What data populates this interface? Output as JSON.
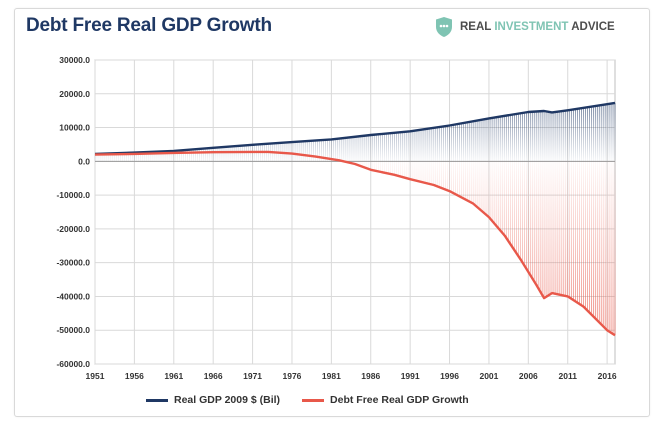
{
  "title": "Debt Free Real GDP Growth",
  "brand": {
    "icon": "shield-icon",
    "word1": "REAL",
    "word2": "INVESTMENT",
    "word3": "ADVICE",
    "accent_color": "#7fc4b3"
  },
  "chart_data": {
    "type": "area",
    "title": "Debt Free Real GDP Growth",
    "x_tick_labels": [
      "1951",
      "1956",
      "1961",
      "1966",
      "1971",
      "1976",
      "1981",
      "1986",
      "1991",
      "1996",
      "2001",
      "2006",
      "2011",
      "2016"
    ],
    "y_tick_labels": [
      "30000.0",
      "20000.0",
      "10000.0",
      "0.0",
      "-10000.0",
      "-20000.0",
      "-30000.0",
      "-40000.0",
      "-50000.0",
      "-60000.0"
    ],
    "ylim": [
      -60000,
      30000
    ],
    "xlim": [
      1951,
      2017
    ],
    "grid": true,
    "legend_position": "bottom",
    "series": [
      {
        "name": "Real GDP 2009 $ (Bil)",
        "color": "#1f3864",
        "points": [
          [
            1951,
            2200
          ],
          [
            1956,
            2600
          ],
          [
            1961,
            3100
          ],
          [
            1966,
            4000
          ],
          [
            1971,
            4900
          ],
          [
            1976,
            5700
          ],
          [
            1981,
            6500
          ],
          [
            1986,
            7800
          ],
          [
            1991,
            8900
          ],
          [
            1996,
            10600
          ],
          [
            2001,
            12700
          ],
          [
            2006,
            14600
          ],
          [
            2008,
            14900
          ],
          [
            2009,
            14500
          ],
          [
            2011,
            15100
          ],
          [
            2016,
            16900
          ],
          [
            2017,
            17300
          ]
        ]
      },
      {
        "name": "Debt Free Real GDP Growth",
        "color": "#e8584a",
        "points": [
          [
            1951,
            2000
          ],
          [
            1956,
            2200
          ],
          [
            1961,
            2500
          ],
          [
            1966,
            2700
          ],
          [
            1971,
            2800
          ],
          [
            1973,
            2800
          ],
          [
            1976,
            2300
          ],
          [
            1979,
            1400
          ],
          [
            1982,
            300
          ],
          [
            1984,
            -800
          ],
          [
            1986,
            -2500
          ],
          [
            1989,
            -4000
          ],
          [
            1991,
            -5300
          ],
          [
            1994,
            -7000
          ],
          [
            1996,
            -8800
          ],
          [
            1999,
            -12500
          ],
          [
            2001,
            -16500
          ],
          [
            2003,
            -22000
          ],
          [
            2005,
            -29000
          ],
          [
            2007,
            -36500
          ],
          [
            2008,
            -40500
          ],
          [
            2009,
            -39000
          ],
          [
            2011,
            -40000
          ],
          [
            2013,
            -43000
          ],
          [
            2016,
            -50000
          ],
          [
            2017,
            -51500
          ]
        ]
      }
    ]
  }
}
